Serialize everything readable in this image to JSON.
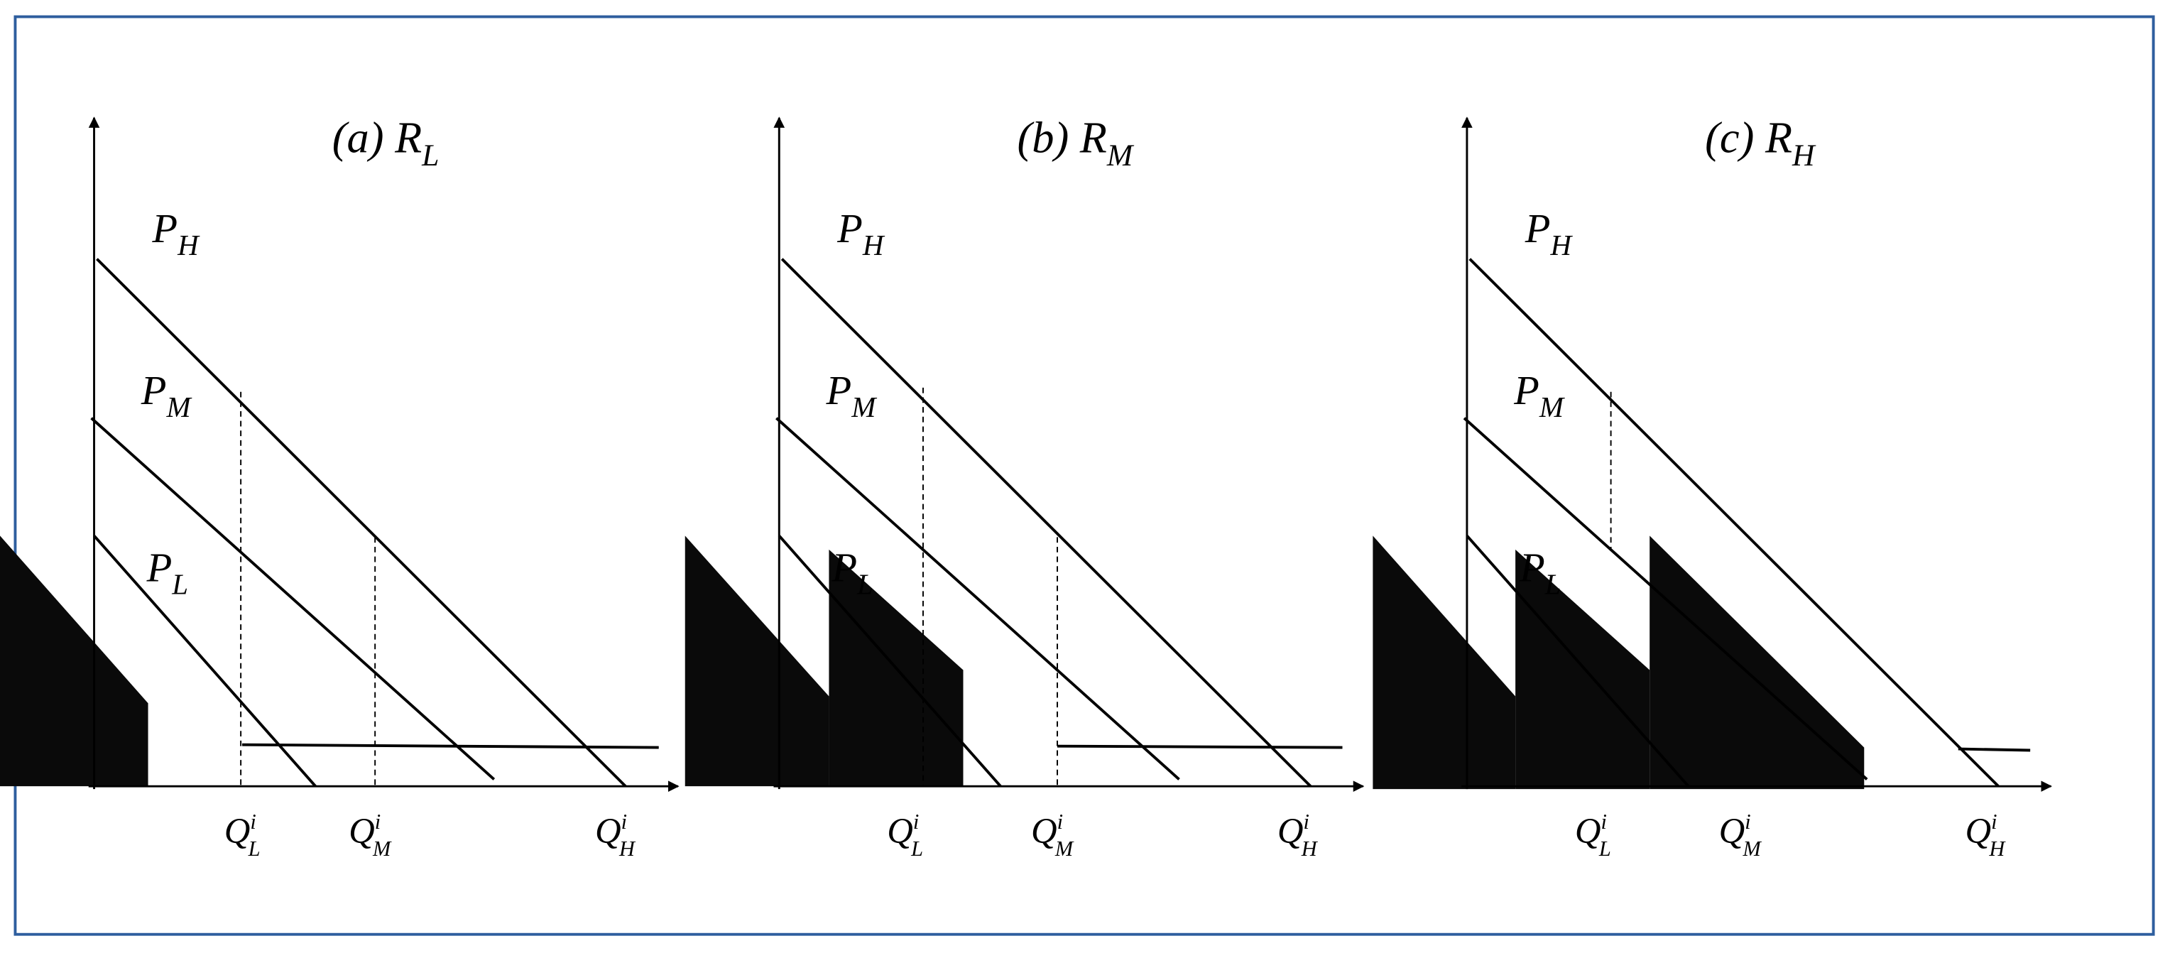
{
  "panels": [
    {
      "title": {
        "prefix": "(a)",
        "base": "R",
        "sub": "L"
      },
      "curves": [
        {
          "base": "P",
          "sub": "H"
        },
        {
          "base": "P",
          "sub": "M"
        },
        {
          "base": "P",
          "sub": "L"
        }
      ],
      "quantities": [
        {
          "base": "Q",
          "sup": "i",
          "sub": "L"
        },
        {
          "base": "Q",
          "sup": "i",
          "sub": "M"
        },
        {
          "base": "Q",
          "sup": "i",
          "sub": "H"
        }
      ]
    },
    {
      "title": {
        "prefix": "(b)",
        "base": "R",
        "sub": "M"
      },
      "curves": [
        {
          "base": "P",
          "sub": "H"
        },
        {
          "base": "P",
          "sub": "M"
        },
        {
          "base": "P",
          "sub": "L"
        }
      ],
      "quantities": [
        {
          "base": "Q",
          "sup": "i",
          "sub": "L"
        },
        {
          "base": "Q",
          "sup": "i",
          "sub": "M"
        },
        {
          "base": "Q",
          "sup": "i",
          "sub": "H"
        }
      ]
    },
    {
      "title": {
        "prefix": "(c)",
        "base": "R",
        "sub": "H"
      },
      "curves": [
        {
          "base": "P",
          "sub": "H"
        },
        {
          "base": "P",
          "sub": "M"
        },
        {
          "base": "P",
          "sub": "L"
        }
      ],
      "quantities": [
        {
          "base": "Q",
          "sup": "i",
          "sub": "L"
        },
        {
          "base": "Q",
          "sup": "i",
          "sub": "M"
        },
        {
          "base": "Q",
          "sup": "i",
          "sub": "H"
        }
      ]
    }
  ]
}
